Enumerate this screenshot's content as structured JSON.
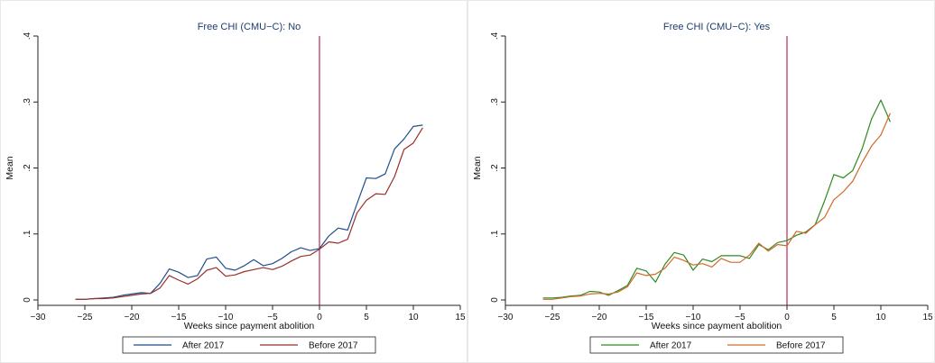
{
  "chart_data": [
    {
      "type": "line",
      "title": "Free CHI (CMU−C): No",
      "xlabel": "Weeks since payment abolition",
      "ylabel": "Mean",
      "xlim": [
        -30,
        15
      ],
      "ylim": [
        0,
        0.4
      ],
      "xticks": [
        "−30",
        "−25",
        "−20",
        "−15",
        "−10",
        "−5",
        "0",
        "5",
        "10",
        "15"
      ],
      "yticks": [
        "0",
        ".1",
        ".2",
        ".3",
        ".4"
      ],
      "vline_x": 0,
      "legend_position": "bottom",
      "x": [
        -26,
        -25,
        -24,
        -23,
        -22,
        -21,
        -20,
        -19,
        -18,
        -17,
        -16,
        -15,
        -14,
        -13,
        -12,
        -11,
        -10,
        -9,
        -8,
        -7,
        -6,
        -5,
        -4,
        -3,
        -2,
        -1,
        0,
        1,
        2,
        3,
        4,
        5,
        6,
        7,
        8,
        9,
        10,
        11
      ],
      "series": [
        {
          "name": "After 2017",
          "color": "#1f4e8c",
          "values": [
            0.001,
            0.001,
            0.002,
            0.003,
            0.004,
            0.007,
            0.009,
            0.011,
            0.01,
            0.025,
            0.047,
            0.042,
            0.034,
            0.037,
            0.062,
            0.065,
            0.048,
            0.045,
            0.052,
            0.061,
            0.052,
            0.055,
            0.063,
            0.073,
            0.079,
            0.075,
            0.078,
            0.097,
            0.109,
            0.106,
            0.146,
            0.185,
            0.184,
            0.191,
            0.229,
            0.244,
            0.263,
            0.265
          ]
        },
        {
          "name": "Before 2017",
          "color": "#9b2f2f",
          "values": [
            0.001,
            0.001,
            0.002,
            0.002,
            0.003,
            0.005,
            0.007,
            0.009,
            0.01,
            0.018,
            0.037,
            0.03,
            0.024,
            0.032,
            0.045,
            0.049,
            0.036,
            0.038,
            0.043,
            0.046,
            0.049,
            0.046,
            0.051,
            0.059,
            0.066,
            0.068,
            0.077,
            0.088,
            0.086,
            0.092,
            0.132,
            0.151,
            0.161,
            0.16,
            0.187,
            0.228,
            0.238,
            0.261
          ]
        }
      ]
    },
    {
      "type": "line",
      "title": "Free CHI (CMU−C): Yes",
      "xlabel": "Weeks since payment abolition",
      "ylabel": "Mean",
      "xlim": [
        -30,
        15
      ],
      "ylim": [
        0,
        0.4
      ],
      "xticks": [
        "−30",
        "−25",
        "−20",
        "−15",
        "−10",
        "−5",
        "0",
        "5",
        "10",
        "15"
      ],
      "yticks": [
        "0",
        ".1",
        ".2",
        ".3",
        ".4"
      ],
      "vline_x": 0,
      "legend_position": "bottom",
      "x": [
        -26,
        -25,
        -24,
        -23,
        -22,
        -21,
        -20,
        -19,
        -18,
        -17,
        -16,
        -15,
        -14,
        -13,
        -12,
        -11,
        -10,
        -9,
        -8,
        -7,
        -6,
        -5,
        -4,
        -3,
        -2,
        -1,
        0,
        1,
        2,
        3,
        4,
        5,
        6,
        7,
        8,
        9,
        10,
        11
      ],
      "series": [
        {
          "name": "After 2017",
          "color": "#2e8b1f",
          "values": [
            0.003,
            0.003,
            0.004,
            0.006,
            0.007,
            0.013,
            0.012,
            0.007,
            0.014,
            0.022,
            0.048,
            0.044,
            0.027,
            0.054,
            0.072,
            0.068,
            0.045,
            0.062,
            0.058,
            0.067,
            0.067,
            0.067,
            0.063,
            0.084,
            0.076,
            0.087,
            0.09,
            0.098,
            0.103,
            0.114,
            0.15,
            0.19,
            0.185,
            0.196,
            0.229,
            0.274,
            0.303,
            0.27
          ]
        },
        {
          "name": "Before 2017",
          "color": "#d06a2b",
          "values": [
            0.001,
            0.001,
            0.003,
            0.005,
            0.006,
            0.009,
            0.01,
            0.009,
            0.012,
            0.02,
            0.041,
            0.037,
            0.039,
            0.048,
            0.065,
            0.06,
            0.053,
            0.055,
            0.05,
            0.063,
            0.057,
            0.057,
            0.068,
            0.086,
            0.074,
            0.084,
            0.082,
            0.104,
            0.101,
            0.114,
            0.125,
            0.152,
            0.164,
            0.18,
            0.208,
            0.233,
            0.25,
            0.283
          ]
        }
      ]
    }
  ]
}
